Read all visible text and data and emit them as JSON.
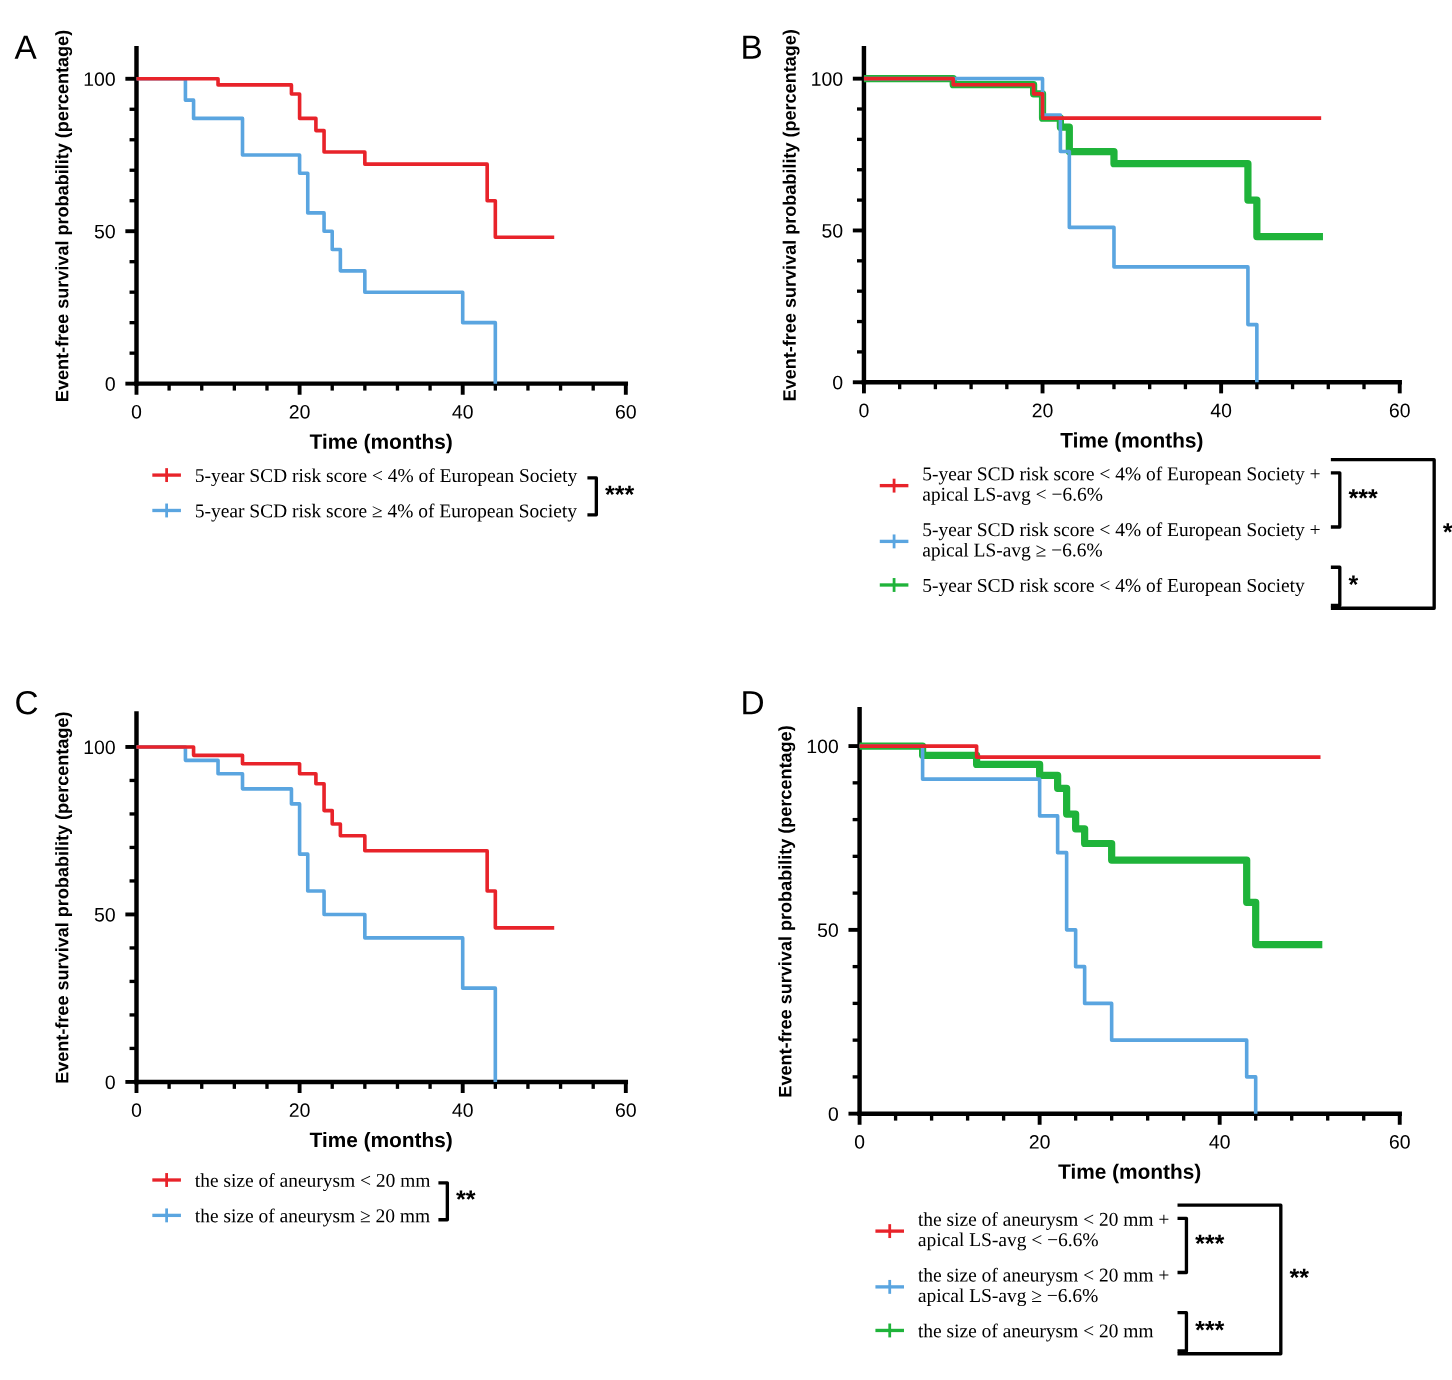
{
  "chart_data": [
    {
      "type": "step",
      "title": "A",
      "xlabel": "Time (months)",
      "ylabel": "Event-free survival probability (percentage)",
      "xlim": [
        0,
        60
      ],
      "ylim": [
        0,
        110
      ],
      "xticks": [
        0,
        {
          "value": 4,
          "label": null
        },
        {
          "value": 8,
          "label": null
        },
        {
          "value": 12,
          "label": null
        },
        {
          "value": 16,
          "label": null
        },
        20,
        {
          "value": 24,
          "label": null
        },
        {
          "value": 28,
          "label": null
        },
        {
          "value": 32,
          "label": null
        },
        {
          "value": 36,
          "label": null
        },
        40,
        {
          "value": 44,
          "label": null
        },
        {
          "value": 48,
          "label": null
        },
        {
          "value": 52,
          "label": null
        },
        {
          "value": 56,
          "label": null
        },
        60
      ],
      "yticks": [
        0,
        {
          "value": 10,
          "label": null
        },
        {
          "value": 20,
          "label": null
        },
        {
          "value": 30,
          "label": null
        },
        {
          "value": 40,
          "label": null
        },
        50,
        {
          "value": 60,
          "label": null
        },
        {
          "value": 70,
          "label": null
        },
        {
          "value": 80,
          "label": null
        },
        {
          "value": 90,
          "label": null
        },
        100
      ],
      "legend": "bottom",
      "grid": false,
      "marker": "none",
      "line_style": "solid",
      "annotations": [
        "***"
      ],
      "series": [
        {
          "name": "5-year SCD risk score < 4% of European Society",
          "color": "#e8232a",
          "x": [
            0,
            10,
            19,
            20,
            22,
            23,
            28,
            43,
            44,
            51
          ],
          "values": [
            100,
            98,
            95,
            87,
            83,
            76,
            72,
            60,
            48,
            48
          ]
        },
        {
          "name": "5-year SCD risk score ≥ 4% of European Society",
          "color": "#5aa5e0",
          "x": [
            0,
            6,
            7,
            13,
            20,
            21,
            23,
            24,
            25,
            28,
            40,
            44
          ],
          "values": [
            100,
            93,
            87,
            75,
            69,
            56,
            50,
            44,
            37,
            30,
            20,
            0
          ]
        }
      ]
    },
    {
      "type": "step",
      "title": "B",
      "xlabel": "Time (months)",
      "ylabel": "Event-free survival probability (percentage)",
      "xlim": [
        0,
        60
      ],
      "ylim": [
        0,
        110
      ],
      "xticks": [
        0,
        {
          "value": 4,
          "label": null
        },
        {
          "value": 8,
          "label": null
        },
        {
          "value": 12,
          "label": null
        },
        {
          "value": 16,
          "label": null
        },
        20,
        {
          "value": 24,
          "label": null
        },
        {
          "value": 28,
          "label": null
        },
        {
          "value": 32,
          "label": null
        },
        {
          "value": 36,
          "label": null
        },
        40,
        {
          "value": 44,
          "label": null
        },
        {
          "value": 48,
          "label": null
        },
        {
          "value": 52,
          "label": null
        },
        {
          "value": 56,
          "label": null
        },
        60
      ],
      "yticks": [
        0,
        {
          "value": 10,
          "label": null
        },
        {
          "value": 20,
          "label": null
        },
        {
          "value": 30,
          "label": null
        },
        {
          "value": 40,
          "label": null
        },
        50,
        {
          "value": 60,
          "label": null
        },
        {
          "value": 70,
          "label": null
        },
        {
          "value": 80,
          "label": null
        },
        {
          "value": 90,
          "label": null
        },
        100
      ],
      "legend": "bottom",
      "grid": false,
      "marker": "none",
      "line_style": "solid",
      "annotations": [
        "***",
        "*",
        "*"
      ],
      "series": [
        {
          "name": "5-year SCD risk score < 4% of European Society +\napical LS-avg < −6.6%",
          "color": "#e8232a",
          "x": [
            0,
            10,
            19,
            20,
            51
          ],
          "values": [
            100,
            98,
            95,
            87,
            87
          ]
        },
        {
          "name": "5-year SCD risk score < 4% of European Society +\napical LS-avg ≥ −6.6%",
          "color": "#5aa5e0",
          "x": [
            0,
            20,
            22,
            23,
            28,
            43,
            44
          ],
          "values": [
            100,
            88,
            76,
            51,
            38,
            19,
            0
          ]
        },
        {
          "name": "5-year SCD risk score < 4% of European Society",
          "color": "#1fb33a",
          "x": [
            0,
            10,
            19,
            20,
            22,
            23,
            28,
            43,
            44,
            51
          ],
          "values": [
            100,
            98,
            95,
            87,
            84,
            76,
            72,
            60,
            48,
            48
          ]
        }
      ]
    },
    {
      "type": "step",
      "title": "C",
      "xlabel": "Time (months)",
      "ylabel": "Event-free survival probability (percentage)",
      "xlim": [
        0,
        60
      ],
      "ylim": [
        0,
        110
      ],
      "xticks": [
        0,
        {
          "value": 4,
          "label": null
        },
        {
          "value": 8,
          "label": null
        },
        {
          "value": 12,
          "label": null
        },
        {
          "value": 16,
          "label": null
        },
        20,
        {
          "value": 24,
          "label": null
        },
        {
          "value": 28,
          "label": null
        },
        {
          "value": 32,
          "label": null
        },
        {
          "value": 36,
          "label": null
        },
        40,
        {
          "value": 44,
          "label": null
        },
        {
          "value": 48,
          "label": null
        },
        {
          "value": 52,
          "label": null
        },
        {
          "value": 56,
          "label": null
        },
        60
      ],
      "yticks": [
        0,
        {
          "value": 10,
          "label": null
        },
        {
          "value": 20,
          "label": null
        },
        {
          "value": 30,
          "label": null
        },
        {
          "value": 40,
          "label": null
        },
        50,
        {
          "value": 60,
          "label": null
        },
        {
          "value": 70,
          "label": null
        },
        {
          "value": 80,
          "label": null
        },
        {
          "value": 90,
          "label": null
        },
        100
      ],
      "legend": "bottom",
      "grid": false,
      "marker": "none",
      "line_style": "solid",
      "annotations": [
        "**"
      ],
      "series": [
        {
          "name": "the size of aneurysm < 20 mm",
          "color": "#e8232a",
          "x": [
            0,
            7,
            13,
            20,
            22,
            23,
            24,
            25,
            28,
            43,
            44,
            51
          ],
          "values": [
            100,
            97.5,
            95,
            92,
            89,
            81,
            77,
            73.5,
            69,
            57,
            46,
            46
          ]
        },
        {
          "name": "the size of aneurysm ≥ 20 mm",
          "color": "#5aa5e0",
          "x": [
            0,
            6,
            10,
            13,
            19,
            20,
            21,
            23,
            28,
            40,
            44
          ],
          "values": [
            100,
            96,
            92,
            87.5,
            83,
            68,
            57,
            50,
            43,
            28,
            0
          ]
        }
      ]
    },
    {
      "type": "step",
      "title": "D",
      "xlabel": "Time (months)",
      "ylabel": "Event-free survival probability (percentage)",
      "xlim": [
        0,
        60
      ],
      "ylim": [
        0,
        110
      ],
      "xticks": [
        0,
        {
          "value": 4,
          "label": null
        },
        {
          "value": 8,
          "label": null
        },
        {
          "value": 12,
          "label": null
        },
        {
          "value": 16,
          "label": null
        },
        20,
        {
          "value": 24,
          "label": null
        },
        {
          "value": 28,
          "label": null
        },
        {
          "value": 32,
          "label": null
        },
        {
          "value": 36,
          "label": null
        },
        40,
        {
          "value": 44,
          "label": null
        },
        {
          "value": 48,
          "label": null
        },
        {
          "value": 52,
          "label": null
        },
        {
          "value": 56,
          "label": null
        },
        60
      ],
      "yticks": [
        0,
        {
          "value": 10,
          "label": null
        },
        {
          "value": 20,
          "label": null
        },
        {
          "value": 30,
          "label": null
        },
        {
          "value": 40,
          "label": null
        },
        50,
        {
          "value": 60,
          "label": null
        },
        {
          "value": 70,
          "label": null
        },
        {
          "value": 80,
          "label": null
        },
        {
          "value": 90,
          "label": null
        },
        100
      ],
      "legend": "bottom",
      "grid": false,
      "marker": "none",
      "line_style": "solid",
      "annotations": [
        "***",
        "***",
        "**"
      ],
      "series": [
        {
          "name": "the size of aneurysm < 20 mm +\napical LS-avg < −6.6%",
          "color": "#e8232a",
          "x": [
            0,
            13,
            51
          ],
          "values": [
            100,
            97,
            97
          ]
        },
        {
          "name": "the size of aneurysm < 20 mm +\napical LS-avg ≥ −6.6%",
          "color": "#5aa5e0",
          "x": [
            0,
            7,
            20,
            22,
            23,
            24,
            25,
            28,
            43,
            44
          ],
          "values": [
            100,
            91,
            81,
            71,
            50,
            40,
            30,
            20,
            10,
            0
          ]
        },
        {
          "name": "the size of aneurysm < 20 mm",
          "color": "#1fb33a",
          "x": [
            0,
            7,
            13,
            20,
            22,
            23,
            24,
            25,
            28,
            43,
            44,
            51
          ],
          "values": [
            100,
            97.5,
            95,
            92,
            88.5,
            81.5,
            77.5,
            73.5,
            69,
            57.5,
            46,
            46
          ]
        }
      ]
    }
  ]
}
